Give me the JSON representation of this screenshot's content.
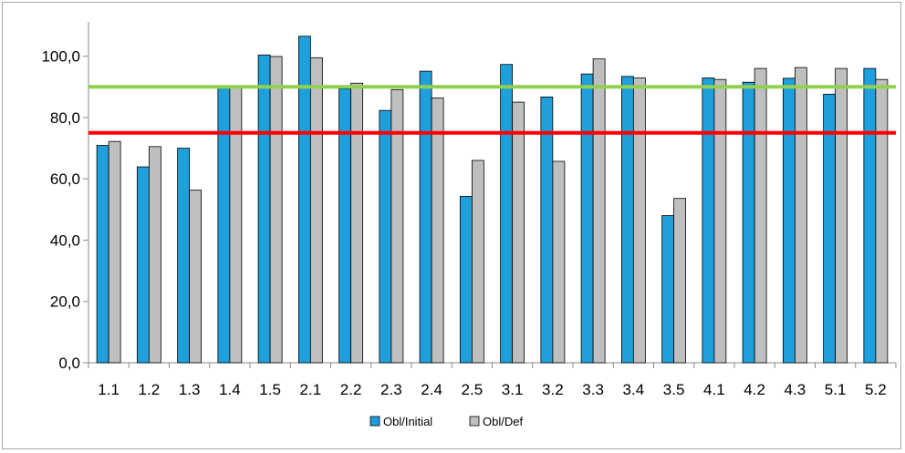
{
  "chart_data": {
    "type": "bar",
    "categories": [
      "1.1",
      "1.2",
      "1.3",
      "1.4",
      "1.5",
      "2.1",
      "2.2",
      "2.3",
      "2.4",
      "2.5",
      "3.1",
      "3.2",
      "3.3",
      "3.4",
      "3.5",
      "4.1",
      "4.2",
      "4.3",
      "5.1",
      "5.2"
    ],
    "series": [
      {
        "name": "Obl/Initial",
        "color": "#1f9fdc",
        "values": [
          70.9,
          63.9,
          70.0,
          90.2,
          100.4,
          106.5,
          89.4,
          82.3,
          95.1,
          54.3,
          97.3,
          86.7,
          94.2,
          93.4,
          48.0,
          92.9,
          91.5,
          92.8,
          87.6,
          96.0
        ]
      },
      {
        "name": "Obl/Def",
        "color": "#bfbfbf",
        "values": [
          72.2,
          70.5,
          56.3,
          90.3,
          99.9,
          99.5,
          91.2,
          89.1,
          86.4,
          66.0,
          85.0,
          65.7,
          99.1,
          92.9,
          53.6,
          92.4,
          96.0,
          96.3,
          96.0,
          92.4
        ]
      }
    ],
    "reference_lines": [
      {
        "value": 90,
        "color": "#92d050"
      },
      {
        "value": 75,
        "color": "#ff0000"
      }
    ],
    "yticks": [
      "0,0",
      "20,0",
      "40,0",
      "60,0",
      "80,0",
      "100,0"
    ],
    "ytick_values": [
      0,
      20,
      40,
      60,
      80,
      100
    ],
    "ylim": [
      0,
      110
    ],
    "grid": false,
    "legend_position": "bottom",
    "title": "",
    "xlabel": "",
    "ylabel": ""
  }
}
